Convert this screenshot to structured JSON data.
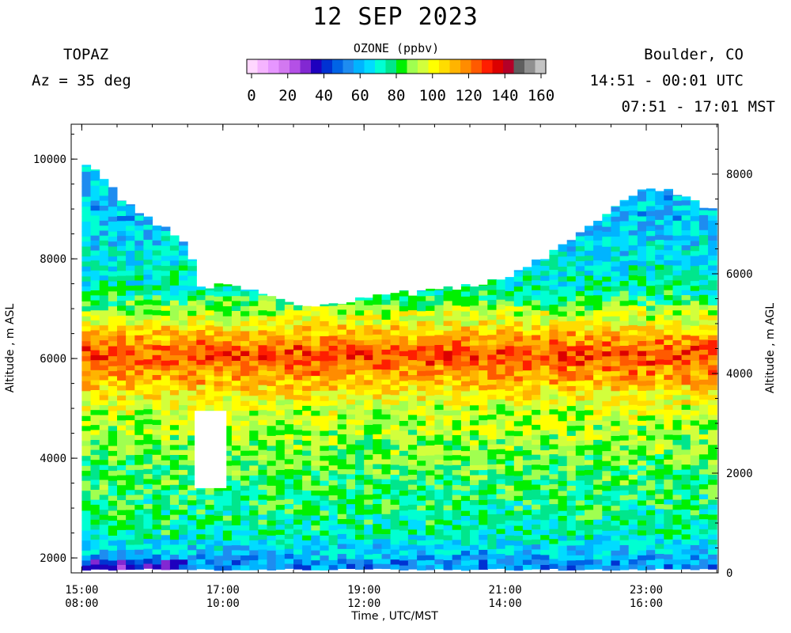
{
  "header": {
    "title": "12 SEP 2023",
    "site": "TOPAZ",
    "azimuth": "Az =  35 deg",
    "location": "Boulder, CO",
    "utc_range": "14:51 - 00:01 UTC",
    "mst_range": "07:51 - 17:01 MST"
  },
  "chart_data": {
    "type": "heatmap",
    "title": "12 SEP 2023",
    "xlabel": "Time , UTC/MST",
    "ylabel_left": "Altitude , m ASL",
    "ylabel_right": "Altitude , m AGL",
    "x_range_utc_hours": [
      14.85,
      24.02
    ],
    "y_range_m_asl": [
      1700,
      10700
    ],
    "x_ticks": [
      {
        "value": 15,
        "utc": "15:00",
        "mst": "08:00"
      },
      {
        "value": 17,
        "utc": "17:00",
        "mst": "10:00"
      },
      {
        "value": 19,
        "utc": "19:00",
        "mst": "12:00"
      },
      {
        "value": 21,
        "utc": "21:00",
        "mst": "14:00"
      },
      {
        "value": 23,
        "utc": "23:00",
        "mst": "16:00"
      }
    ],
    "y_ticks_left": [
      {
        "value": 2000,
        "label": "2000"
      },
      {
        "value": 4000,
        "label": "4000"
      },
      {
        "value": 6000,
        "label": "6000"
      },
      {
        "value": 8000,
        "label": "8000"
      },
      {
        "value": 10000,
        "label": "10000"
      }
    ],
    "y_ticks_right": [
      {
        "value": 0,
        "label": "0"
      },
      {
        "value": 2000,
        "label": "2000"
      },
      {
        "value": 4000,
        "label": "4000"
      },
      {
        "value": 6000,
        "label": "6000"
      },
      {
        "value": 8000,
        "label": "8000"
      }
    ],
    "colorbar": {
      "title": "OZONE (ppbv)",
      "range": [
        0,
        160
      ],
      "ticks": [
        "0",
        "20",
        "40",
        "60",
        "80",
        "100",
        "120",
        "140",
        "160"
      ],
      "colors": [
        "#ffd7ff",
        "#f5b4ff",
        "#e696ff",
        "#d278f0",
        "#b450e6",
        "#8228d2",
        "#1e00be",
        "#0032d2",
        "#0064e6",
        "#1e8cf0",
        "#00b4ff",
        "#00dcff",
        "#00ffd2",
        "#00e68c",
        "#00f000",
        "#a0ff50",
        "#d2ff3c",
        "#ffff00",
        "#ffdc00",
        "#ffb400",
        "#ff8c00",
        "#ff5a00",
        "#ff1e00",
        "#dc0000",
        "#b40028",
        "#5f5f5f",
        "#909090",
        "#c4c4c4"
      ]
    },
    "profiles": [
      {
        "time": 15.0,
        "top": 10050
      },
      {
        "time": 15.5,
        "top": 9300
      },
      {
        "time": 16.0,
        "top": 8800
      },
      {
        "time": 16.5,
        "top": 8200
      },
      {
        "time": 16.7,
        "top": 7400
      },
      {
        "time": 17.0,
        "top": 7550
      },
      {
        "time": 17.5,
        "top": 7300
      },
      {
        "time": 18.0,
        "top": 7050
      },
      {
        "time": 18.5,
        "top": 7050
      },
      {
        "time": 19.0,
        "top": 7200
      },
      {
        "time": 19.5,
        "top": 7300
      },
      {
        "time": 20.0,
        "top": 7350
      },
      {
        "time": 20.5,
        "top": 7450
      },
      {
        "time": 21.0,
        "top": 7600
      },
      {
        "time": 21.5,
        "top": 8000
      },
      {
        "time": 22.0,
        "top": 8400
      },
      {
        "time": 22.5,
        "top": 9000
      },
      {
        "time": 23.0,
        "top": 9400
      },
      {
        "time": 23.5,
        "top": 9300
      },
      {
        "time": 24.0,
        "top": 8900
      }
    ],
    "ozone_layers_ppbv": [
      {
        "altitude_min": 1700,
        "altitude_max": 2000,
        "ozone": 38
      },
      {
        "altitude_min": 2000,
        "altitude_max": 3000,
        "ozone": 52
      },
      {
        "altitude_min": 3000,
        "altitude_max": 4500,
        "ozone": 58
      },
      {
        "altitude_min": 4500,
        "altitude_max": 5500,
        "ozone": 66
      },
      {
        "altitude_min": 5500,
        "altitude_max": 6700,
        "ozone": 88
      },
      {
        "altitude_min": 6700,
        "altitude_max": 8000,
        "ozone": 52
      },
      {
        "altitude_min": 8000,
        "altitude_max": 10100,
        "ozone": 42
      }
    ],
    "no_data_gaps": [
      {
        "time_start": 16.6,
        "time_end": 17.05,
        "altitude_min": 3400,
        "altitude_max": 4950
      }
    ]
  }
}
